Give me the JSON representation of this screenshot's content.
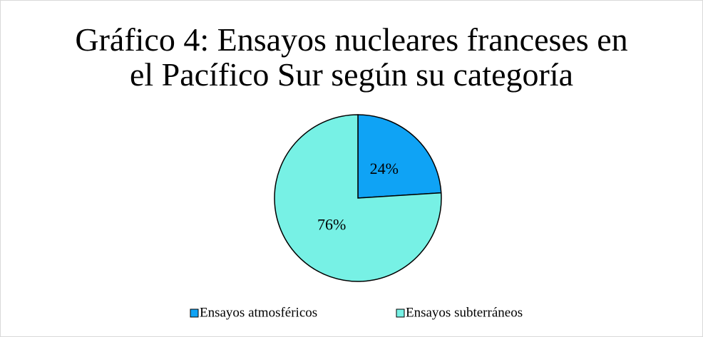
{
  "chart_data": {
    "type": "pie",
    "title": "Gráfico 4: Ensayos nucleares franceses en el Pacífico Sur según su categoría",
    "categories": [
      "Ensayos atmosféricos",
      "Ensayos subterráneos"
    ],
    "values": [
      24,
      76
    ],
    "value_labels": [
      "24%",
      "76%"
    ],
    "colors": [
      "#0fa3f5",
      "#77f1e5"
    ],
    "legend": "bottom"
  }
}
